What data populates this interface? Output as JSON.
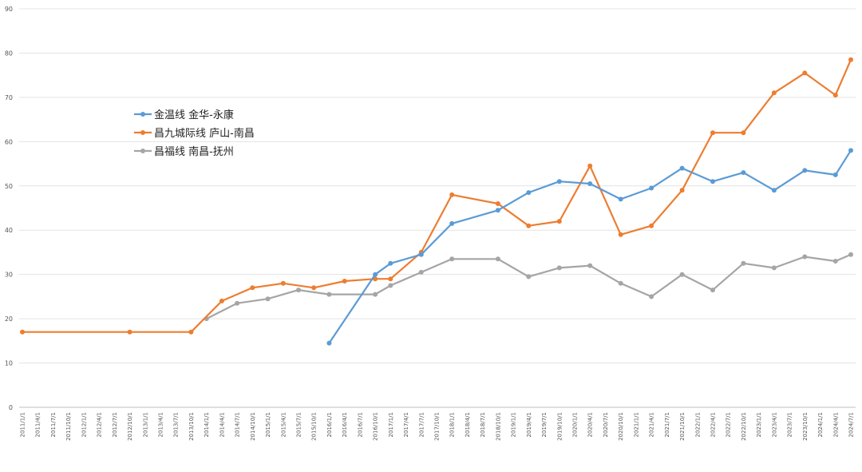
{
  "chart_data": {
    "type": "line",
    "title": "",
    "xlabel": "",
    "ylabel": "",
    "ylim": [
      0,
      90
    ],
    "yticks": [
      0,
      10,
      20,
      30,
      40,
      50,
      60,
      70,
      80,
      90
    ],
    "grid": "horizontal",
    "legend_position": "upper-left inside plot",
    "categories": [
      "2011/1/1",
      "2011/4/1",
      "2011/7/1",
      "2011/10/1",
      "2012/1/1",
      "2012/4/1",
      "2012/7/1",
      "2012/10/1",
      "2013/1/1",
      "2013/4/1",
      "2013/7/1",
      "2013/10/1",
      "2014/1/1",
      "2014/4/1",
      "2014/7/1",
      "2014/10/1",
      "2015/1/1",
      "2015/4/1",
      "2015/7/1",
      "2015/10/1",
      "2016/1/1",
      "2016/4/1",
      "2016/7/1",
      "2016/10/1",
      "2017/1/1",
      "2017/4/1",
      "2017/7/1",
      "2017/10/1",
      "2018/1/1",
      "2018/4/1",
      "2018/7/1",
      "2018/10/1",
      "2019/1/1",
      "2019/4/1",
      "2019/7/1",
      "2019/10/1",
      "2020/1/1",
      "2020/4/1",
      "2020/7/1",
      "2020/10/1",
      "2021/1/1",
      "2021/4/1",
      "2021/7/1",
      "2021/10/1",
      "2022/1/1",
      "2022/4/1",
      "2022/7/1",
      "2022/10/1",
      "2023/1/1",
      "2023/4/1",
      "2023/7/1",
      "2023/10/1",
      "2024/1/1",
      "2024/4/1",
      "2024/7/1"
    ],
    "series": [
      {
        "name": "金温线 金华-永康",
        "color": "#5b9bd5",
        "points": [
          [
            "2016/1/1",
            14.5
          ],
          [
            "2016/10/1",
            30
          ],
          [
            "2017/1/1",
            32.5
          ],
          [
            "2017/7/1",
            34.5
          ],
          [
            "2018/1/1",
            41.5
          ],
          [
            "2018/10/1",
            44.5
          ],
          [
            "2019/4/1",
            48.5
          ],
          [
            "2019/10/1",
            51
          ],
          [
            "2020/4/1",
            50.5
          ],
          [
            "2020/10/1",
            47
          ],
          [
            "2021/4/1",
            49.5
          ],
          [
            "2021/10/1",
            54
          ],
          [
            "2022/4/1",
            51
          ],
          [
            "2022/10/1",
            53
          ],
          [
            "2023/4/1",
            49
          ],
          [
            "2023/10/1",
            53.5
          ],
          [
            "2024/4/1",
            52.5
          ],
          [
            "2024/7/1",
            58
          ]
        ]
      },
      {
        "name": "昌九城际线 庐山-南昌",
        "color": "#ed7d31",
        "points": [
          [
            "2011/1/1",
            17
          ],
          [
            "2012/10/1",
            17
          ],
          [
            "2013/10/1",
            17
          ],
          [
            "2014/4/1",
            24
          ],
          [
            "2014/10/1",
            27
          ],
          [
            "2015/4/1",
            28
          ],
          [
            "2015/10/1",
            27
          ],
          [
            "2016/4/1",
            28.5
          ],
          [
            "2016/10/1",
            29
          ],
          [
            "2017/1/1",
            29
          ],
          [
            "2017/7/1",
            35
          ],
          [
            "2018/1/1",
            48
          ],
          [
            "2018/10/1",
            46
          ],
          [
            "2019/4/1",
            41
          ],
          [
            "2019/10/1",
            42
          ],
          [
            "2020/4/1",
            54.5
          ],
          [
            "2020/10/1",
            39
          ],
          [
            "2021/4/1",
            41
          ],
          [
            "2021/10/1",
            49
          ],
          [
            "2022/4/1",
            62
          ],
          [
            "2022/10/1",
            62
          ],
          [
            "2023/4/1",
            71
          ],
          [
            "2023/10/1",
            75.5
          ],
          [
            "2024/4/1",
            70.5
          ],
          [
            "2024/7/1",
            78.5
          ]
        ]
      },
      {
        "name": "昌福线 南昌-抚州",
        "color": "#a5a5a5",
        "points": [
          [
            "2014/1/1",
            20
          ],
          [
            "2014/7/1",
            23.5
          ],
          [
            "2015/1/1",
            24.5
          ],
          [
            "2015/7/1",
            26.5
          ],
          [
            "2016/1/1",
            25.5
          ],
          [
            "2016/10/1",
            25.5
          ],
          [
            "2017/1/1",
            27.5
          ],
          [
            "2017/7/1",
            30.5
          ],
          [
            "2018/1/1",
            33.5
          ],
          [
            "2018/10/1",
            33.5
          ],
          [
            "2019/4/1",
            29.5
          ],
          [
            "2019/10/1",
            31.5
          ],
          [
            "2020/4/1",
            32
          ],
          [
            "2020/10/1",
            28
          ],
          [
            "2021/4/1",
            25
          ],
          [
            "2021/10/1",
            30
          ],
          [
            "2022/4/1",
            26.5
          ],
          [
            "2022/10/1",
            32.5
          ],
          [
            "2023/4/1",
            31.5
          ],
          [
            "2023/10/1",
            34
          ],
          [
            "2024/4/1",
            33
          ],
          [
            "2024/7/1",
            34.5
          ]
        ]
      }
    ]
  }
}
